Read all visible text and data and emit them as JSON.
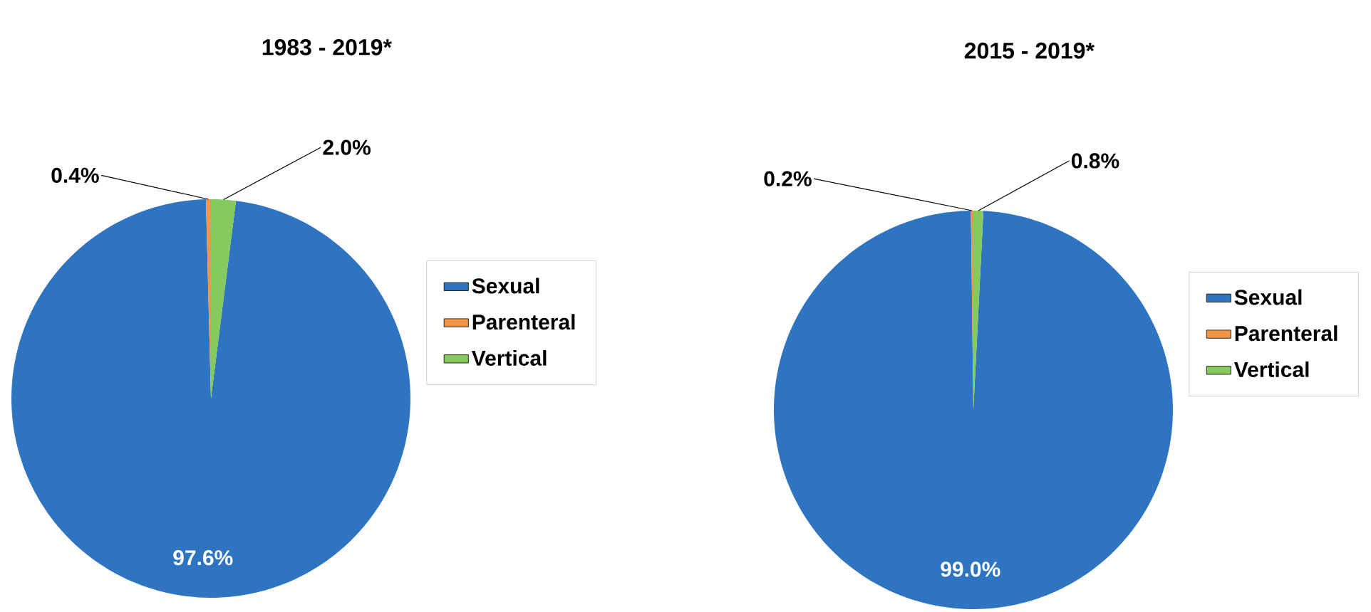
{
  "chart_data": [
    {
      "type": "pie",
      "title": "1983 - 2019*",
      "categories": [
        "Sexual",
        "Parenteral",
        "Vertical"
      ],
      "values": [
        97.6,
        0.4,
        2.0
      ],
      "colors": [
        "#2e74c0",
        "#f0954a",
        "#86c95e"
      ],
      "value_labels": [
        "97.6%",
        "0.4%",
        "2.0%"
      ],
      "legend": "right"
    },
    {
      "type": "pie",
      "title": "2015 - 2019*",
      "categories": [
        "Sexual",
        "Parenteral",
        "Vertical"
      ],
      "values": [
        99.0,
        0.2,
        0.8
      ],
      "colors": [
        "#2e74c0",
        "#f0954a",
        "#86c95e"
      ],
      "value_labels": [
        "99.0%",
        "0.2%",
        "0.8%"
      ],
      "legend": "right"
    }
  ]
}
